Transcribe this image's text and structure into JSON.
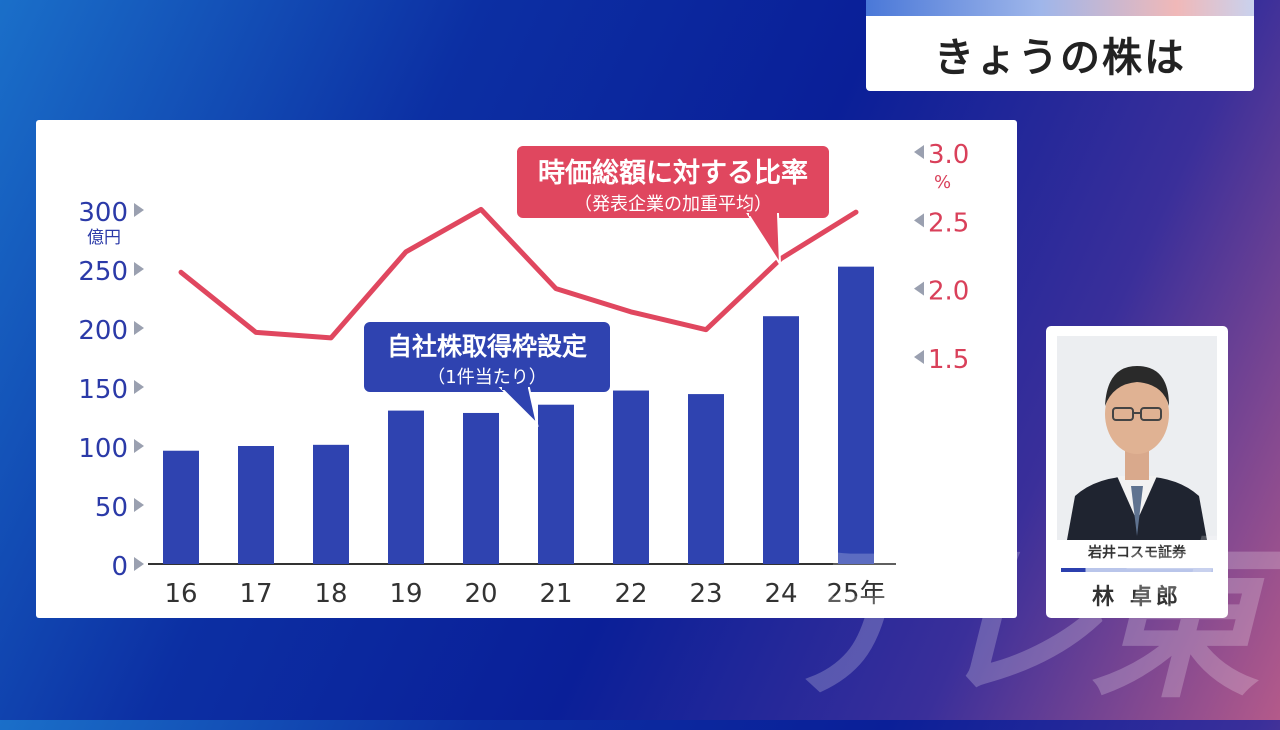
{
  "header": {
    "title": "きょうの株は"
  },
  "chart_data": {
    "type": "bar+line",
    "categories": [
      "16",
      "17",
      "18",
      "19",
      "20",
      "21",
      "22",
      "23",
      "24",
      "25年"
    ],
    "left_axis": {
      "unit": "億円",
      "ticks": [
        0,
        50,
        100,
        150,
        200,
        250,
        300
      ],
      "ylim": [
        0,
        300
      ]
    },
    "right_axis": {
      "unit": "%",
      "ticks": [
        1.5,
        2.0,
        2.5,
        3.0
      ],
      "tick_labels": [
        "1.5",
        "2.0",
        "2.5",
        "3.0"
      ],
      "ylim": [
        1.5,
        3.0
      ]
    },
    "series": [
      {
        "kind": "bar",
        "axis": "left",
        "color": "#2f43b0",
        "values": [
          96,
          100,
          101,
          130,
          128,
          135,
          147,
          144,
          210,
          252
        ]
      },
      {
        "kind": "line",
        "axis": "right",
        "color": "#e0475f",
        "values": [
          2.12,
          1.68,
          1.64,
          2.27,
          2.58,
          2.0,
          1.83,
          1.7,
          2.22,
          2.56
        ]
      }
    ],
    "annotations": {
      "line_callout": {
        "line1": "時価総額に対する比率",
        "line2": "（発表企業の加重平均）"
      },
      "bar_callout": {
        "line1": "自社株取得枠設定",
        "line2": "（1件当たり）"
      }
    }
  },
  "presenter": {
    "company": "岩井コスモ証券",
    "name": "林 卓郎"
  },
  "watermark": {
    "text": "テレ東"
  }
}
